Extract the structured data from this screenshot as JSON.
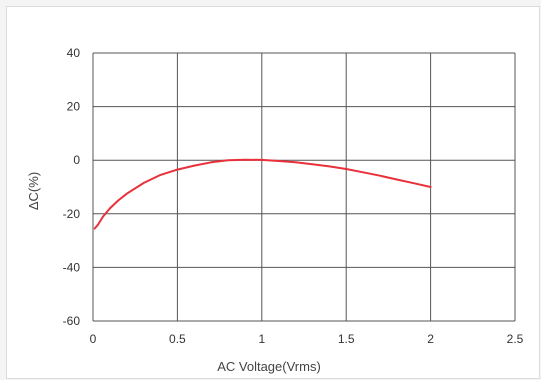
{
  "chart_data": {
    "type": "line",
    "title": "",
    "xlabel": "AC Voltage(Vrms)",
    "ylabel": "ΔC(%)",
    "xlim": [
      0,
      2.5
    ],
    "ylim": [
      -60,
      40
    ],
    "xticks": [
      "0",
      "0.5",
      "1",
      "1.5",
      "2",
      "2.5"
    ],
    "yticks": [
      "40",
      "20",
      "0",
      "-20",
      "-40",
      "-60"
    ],
    "grid": true,
    "legend": "none",
    "series": [
      {
        "color": "#e8313a",
        "x": [
          0.01,
          0.03,
          0.06,
          0.1,
          0.15,
          0.2,
          0.3,
          0.4,
          0.5,
          0.6,
          0.7,
          0.8,
          0.9,
          1.0,
          1.1,
          1.2,
          1.3,
          1.4,
          1.5,
          1.6,
          1.7,
          1.8,
          1.9,
          2.0
        ],
        "y": [
          -25.5,
          -24,
          -21,
          -18,
          -15,
          -12.5,
          -8.5,
          -5.5,
          -3.5,
          -2,
          -0.8,
          0,
          0.2,
          0.1,
          -0.3,
          -0.8,
          -1.5,
          -2.3,
          -3.3,
          -4.5,
          -5.8,
          -7.2,
          -8.6,
          -10
        ]
      }
    ]
  }
}
